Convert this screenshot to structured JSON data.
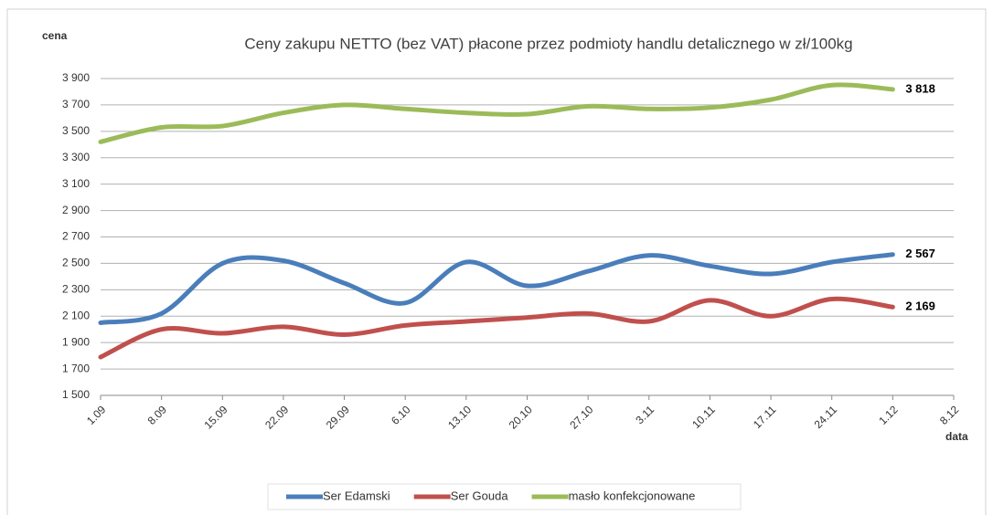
{
  "chart_data": {
    "type": "line",
    "title": "Ceny zakupu NETTO (bez VAT) płacone przez podmioty handlu detalicznego w zł/100kg",
    "y_label": "cena",
    "x_label": "data",
    "categories": [
      "1.09",
      "8.09",
      "15.09",
      "22.09",
      "29.09",
      "6.10",
      "13.10",
      "20.10",
      "27.10",
      "3.11",
      "10.11",
      "17.11",
      "24.11",
      "1.12",
      "8.12"
    ],
    "ylim": [
      1500,
      3900
    ],
    "yticks": [
      {
        "value": 1500,
        "label": "1 500"
      },
      {
        "value": 1700,
        "label": "1 700"
      },
      {
        "value": 1900,
        "label": "1 900"
      },
      {
        "value": 2100,
        "label": "2 100"
      },
      {
        "value": 2300,
        "label": "2 300"
      },
      {
        "value": 2500,
        "label": "2 500"
      },
      {
        "value": 2700,
        "label": "2 700"
      },
      {
        "value": 2900,
        "label": "2 900"
      },
      {
        "value": 3100,
        "label": "3 100"
      },
      {
        "value": 3300,
        "label": "3 300"
      },
      {
        "value": 3500,
        "label": "3 500"
      },
      {
        "value": 3700,
        "label": "3 700"
      },
      {
        "value": 3900,
        "label": "3 900"
      }
    ],
    "grid": true,
    "legend": "bottom",
    "smooth": true,
    "series": [
      {
        "name": "Ser Edamski",
        "color": "#4a7ebb",
        "values": [
          2050,
          2120,
          2500,
          2520,
          2350,
          2200,
          2510,
          2330,
          2440,
          2560,
          2480,
          2420,
          2510,
          2567,
          null
        ],
        "value_labels": [
          null,
          null,
          null,
          null,
          null,
          null,
          null,
          null,
          null,
          null,
          null,
          null,
          null,
          "2 567",
          null
        ]
      },
      {
        "name": "Ser Gouda",
        "color": "#c0504d",
        "values": [
          1790,
          2000,
          1970,
          2020,
          1960,
          2030,
          2060,
          2090,
          2120,
          2060,
          2220,
          2100,
          2230,
          2169,
          null
        ],
        "value_labels": [
          null,
          null,
          null,
          null,
          null,
          null,
          null,
          null,
          null,
          null,
          null,
          null,
          null,
          "2 169",
          null
        ]
      },
      {
        "name": "masło konfekcjonowane",
        "color": "#9bbb59",
        "values": [
          3420,
          3530,
          3540,
          3640,
          3700,
          3670,
          3640,
          3630,
          3690,
          3670,
          3680,
          3740,
          3850,
          3818,
          null
        ],
        "value_labels": [
          null,
          null,
          null,
          null,
          null,
          null,
          null,
          null,
          null,
          null,
          null,
          null,
          null,
          "3 818",
          null
        ]
      }
    ]
  }
}
